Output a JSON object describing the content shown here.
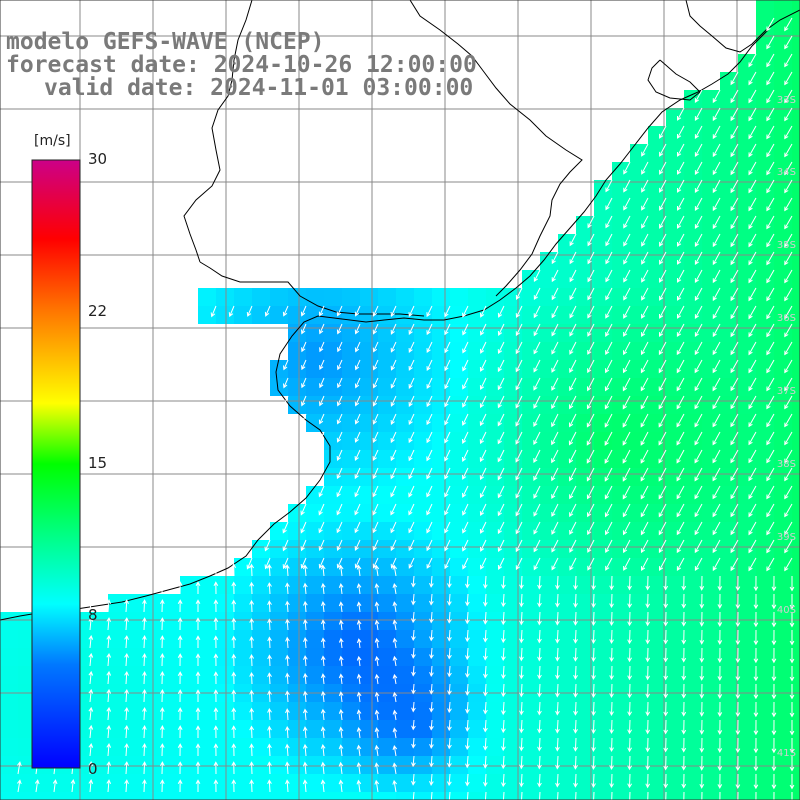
{
  "title": {
    "line1": "modelo GEFS-WAVE (NCEP)",
    "line2": "forecast date: 2024-10-26 12:00:00",
    "line3": "valid date: 2024-11-01 03:00:00"
  },
  "colorbar": {
    "unit": "[m/s]",
    "ticks": [
      "30",
      "22",
      "15",
      "8",
      "0"
    ],
    "range": [
      0,
      30
    ]
  },
  "lat_labels": [
    "33S",
    "34S",
    "35S",
    "36S",
    "37S",
    "38S",
    "39S",
    "40S",
    "41S"
  ],
  "colors": {
    "background": "#ffffff",
    "grid": "#808080",
    "coast": "#000000",
    "arrows": "#ffffff"
  },
  "map": {
    "variable": "wind speed / direction",
    "lon_range": [
      -61,
      -50
    ],
    "lat_range": [
      -41.5,
      -30.5
    ]
  }
}
